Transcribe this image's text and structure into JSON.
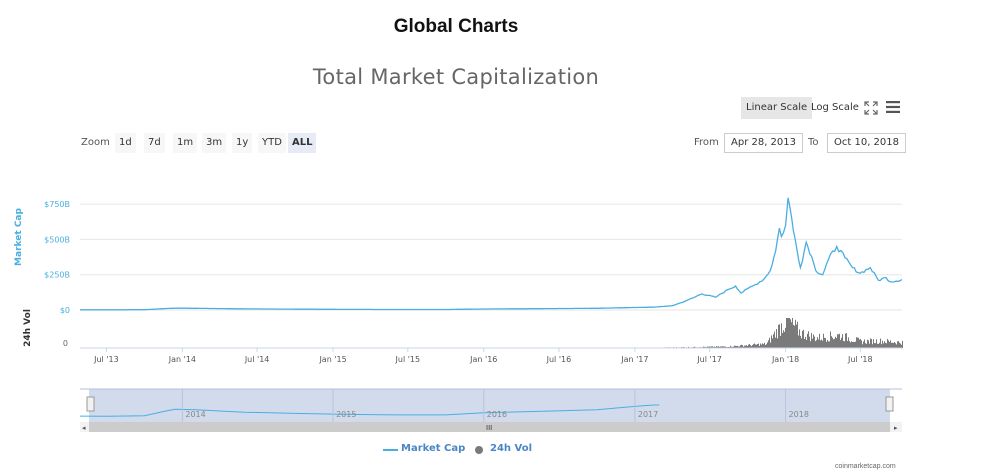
{
  "page": {
    "heading": "Global Charts"
  },
  "toolbar": {
    "linear_label": "Linear Scale",
    "log_label": "Log Scale",
    "expand_icon": "expand-icon",
    "menu_icon": "hamburger-menu-icon"
  },
  "zoom": {
    "label": "Zoom",
    "buttons": [
      "1d",
      "7d",
      "1m",
      "3m",
      "1y",
      "YTD",
      "ALL"
    ],
    "active": "ALL"
  },
  "range": {
    "from_label": "From",
    "from_value": "Apr 28, 2013",
    "to_label": "To",
    "to_value": "Oct 10, 2018"
  },
  "legend": {
    "market_cap": "Market Cap",
    "vol": "24h Vol"
  },
  "watermark": "coinmarketcap.com",
  "navigator": {
    "labels": [
      "2014",
      "2015",
      "2016",
      "2017",
      "2018"
    ]
  },
  "colors": {
    "market_cap": "#4aaee0",
    "volume": "#7a7a7a",
    "navigator_fill": "#cdd7ea",
    "axis_title": "#4aaee0"
  },
  "chart_data": {
    "type": "line",
    "title": "Total Market Capitalization",
    "scale": "linear",
    "x_range": [
      "2013-04-28",
      "2018-10-10"
    ],
    "x_ticks": [
      "Jul '13",
      "Jan '14",
      "Jul '14",
      "Jan '15",
      "Jul '15",
      "Jan '16",
      "Jul '16",
      "Jan '17",
      "Jul '17",
      "Jan '18",
      "Jul '18"
    ],
    "y_ticks": [
      "$0",
      "$250B",
      "$500B",
      "$750B"
    ],
    "y_range": [
      0,
      850
    ],
    "ylabel": "Market Cap",
    "y2label": "24h Vol",
    "y2_ticks": [
      "0"
    ],
    "grid": true,
    "legend_position": "bottom-center",
    "series": [
      {
        "name": "Market Cap",
        "unit": "billion USD",
        "x": [
          "2013-04-28",
          "2013-07-01",
          "2013-10-01",
          "2013-11-25",
          "2013-12-15",
          "2014-02-01",
          "2014-06-01",
          "2014-10-01",
          "2015-01-15",
          "2015-06-01",
          "2015-10-01",
          "2016-01-01",
          "2016-06-15",
          "2016-10-01",
          "2017-01-01",
          "2017-02-15",
          "2017-04-01",
          "2017-05-01",
          "2017-05-25",
          "2017-06-12",
          "2017-07-15",
          "2017-08-15",
          "2017-09-02",
          "2017-09-15",
          "2017-10-01",
          "2017-10-20",
          "2017-11-10",
          "2017-11-25",
          "2017-12-08",
          "2017-12-17",
          "2017-12-22",
          "2018-01-01",
          "2018-01-07",
          "2018-01-12",
          "2018-01-20",
          "2018-02-06",
          "2018-02-20",
          "2018-03-05",
          "2018-03-15",
          "2018-04-01",
          "2018-04-15",
          "2018-05-05",
          "2018-05-25",
          "2018-06-12",
          "2018-06-30",
          "2018-07-25",
          "2018-08-14",
          "2018-09-01",
          "2018-09-12",
          "2018-10-10"
        ],
        "y": [
          1.5,
          1.2,
          2.2,
          10.5,
          13,
          12,
          8,
          6,
          4.5,
          3.5,
          3.5,
          7,
          10,
          12,
          17.7,
          20,
          30,
          60,
          90,
          115,
          90,
          145,
          170,
          120,
          150,
          180,
          220,
          280,
          420,
          580,
          520,
          600,
          795,
          720,
          560,
          300,
          480,
          380,
          280,
          250,
          360,
          450,
          370,
          300,
          260,
          300,
          210,
          230,
          200,
          215
        ]
      },
      {
        "name": "24h Vol",
        "unit": "billion USD",
        "x": [
          "2013-04-28",
          "2015-01-01",
          "2016-06-01",
          "2017-01-01",
          "2017-05-01",
          "2017-08-15",
          "2017-11-15",
          "2017-12-22",
          "2018-01-06",
          "2018-02-06",
          "2018-03-15",
          "2018-05-10",
          "2018-07-01",
          "2018-08-15",
          "2018-10-10"
        ],
        "y": [
          0.02,
          0.02,
          0.05,
          0.2,
          1.5,
          3,
          8,
          45,
          55,
          30,
          20,
          25,
          13,
          14,
          11
        ]
      }
    ]
  }
}
